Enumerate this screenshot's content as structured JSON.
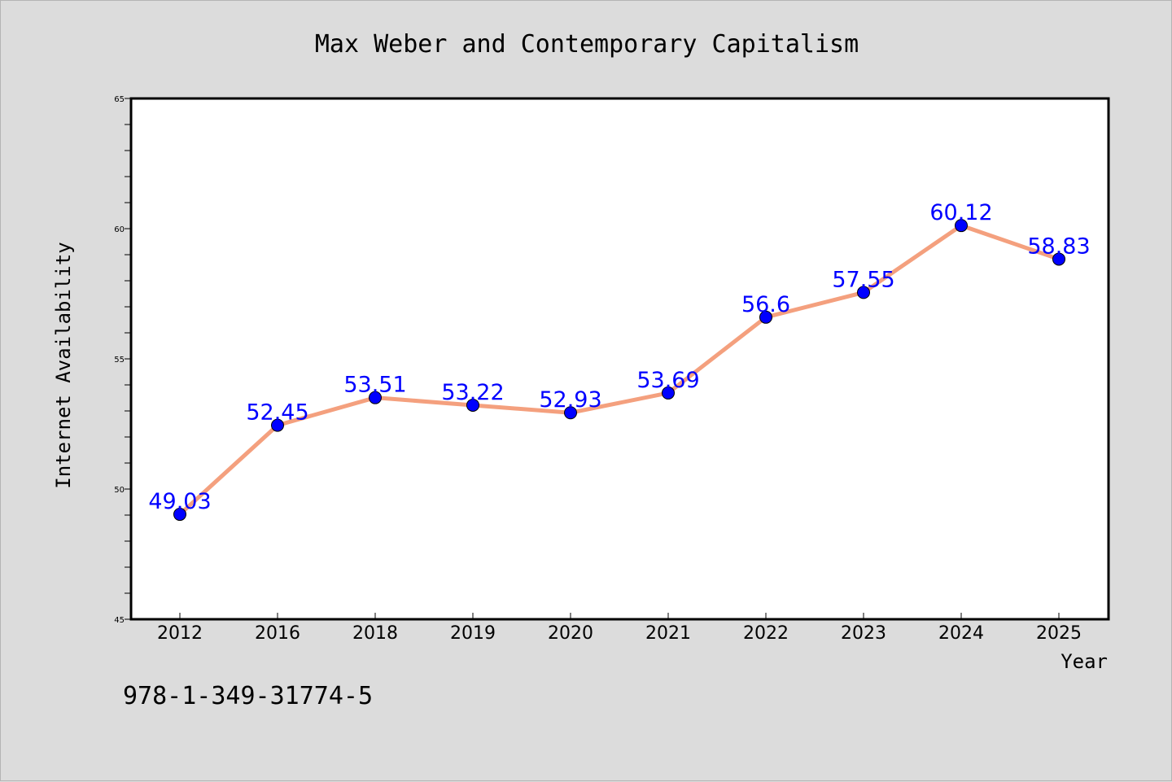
{
  "chart_data": {
    "type": "line",
    "title": "Max Weber and Contemporary Capitalism",
    "xlabel": "Year",
    "ylabel": "Internet Availability",
    "categories": [
      "2012",
      "2016",
      "2018",
      "2019",
      "2020",
      "2021",
      "2022",
      "2023",
      "2024",
      "2025"
    ],
    "series": [
      {
        "values": [
          49.03,
          52.45,
          53.51,
          53.22,
          52.93,
          53.69,
          56.6,
          57.55,
          60.12,
          58.83
        ],
        "data_labels": [
          "49.03",
          "52.45",
          "53.51",
          "53.22",
          "52.93",
          "53.69",
          "56.6",
          "57.55",
          "60.12",
          "58.83"
        ]
      }
    ],
    "ylim": [
      45,
      65
    ],
    "yticks_major": [
      "45",
      "50",
      "55",
      "60",
      "65"
    ],
    "y_minor_step": 1,
    "grid": false,
    "colors": {
      "line": "#f4a07e",
      "marker": "#0000ff",
      "data_label": "#0000ff",
      "background": "#dcdcdc",
      "plot_area": "#ffffff"
    }
  },
  "footer": {
    "isbn": "978-1-349-31774-5"
  }
}
